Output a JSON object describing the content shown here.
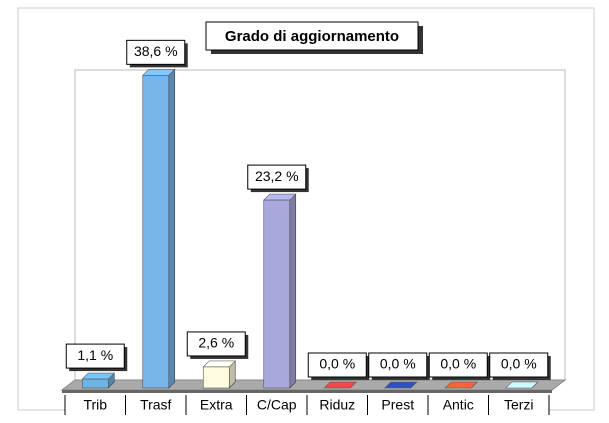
{
  "chart_data": {
    "type": "bar3d",
    "title": "Grado di aggiornamento",
    "categories": [
      "Trib",
      "Trasf",
      "Extra",
      "C/Cap",
      "Riduz",
      "Prest",
      "Antic",
      "Terzi"
    ],
    "values": [
      1.1,
      38.6,
      2.6,
      23.2,
      0,
      0,
      0,
      0
    ],
    "value_labels": [
      "1,1 %",
      "38,6 %",
      "2,6 %",
      "23,2 %",
      "0,0 %",
      "0,0 %",
      "0,0 %",
      "0,0 %"
    ],
    "colors": [
      "#6cb4e4",
      "#78b6ea",
      "#fffbe0",
      "#a8a8dc",
      "#e04040",
      "#2a4ab0",
      "#e85a30",
      "#b8e4ec"
    ],
    "ylim": [
      0,
      40
    ]
  }
}
